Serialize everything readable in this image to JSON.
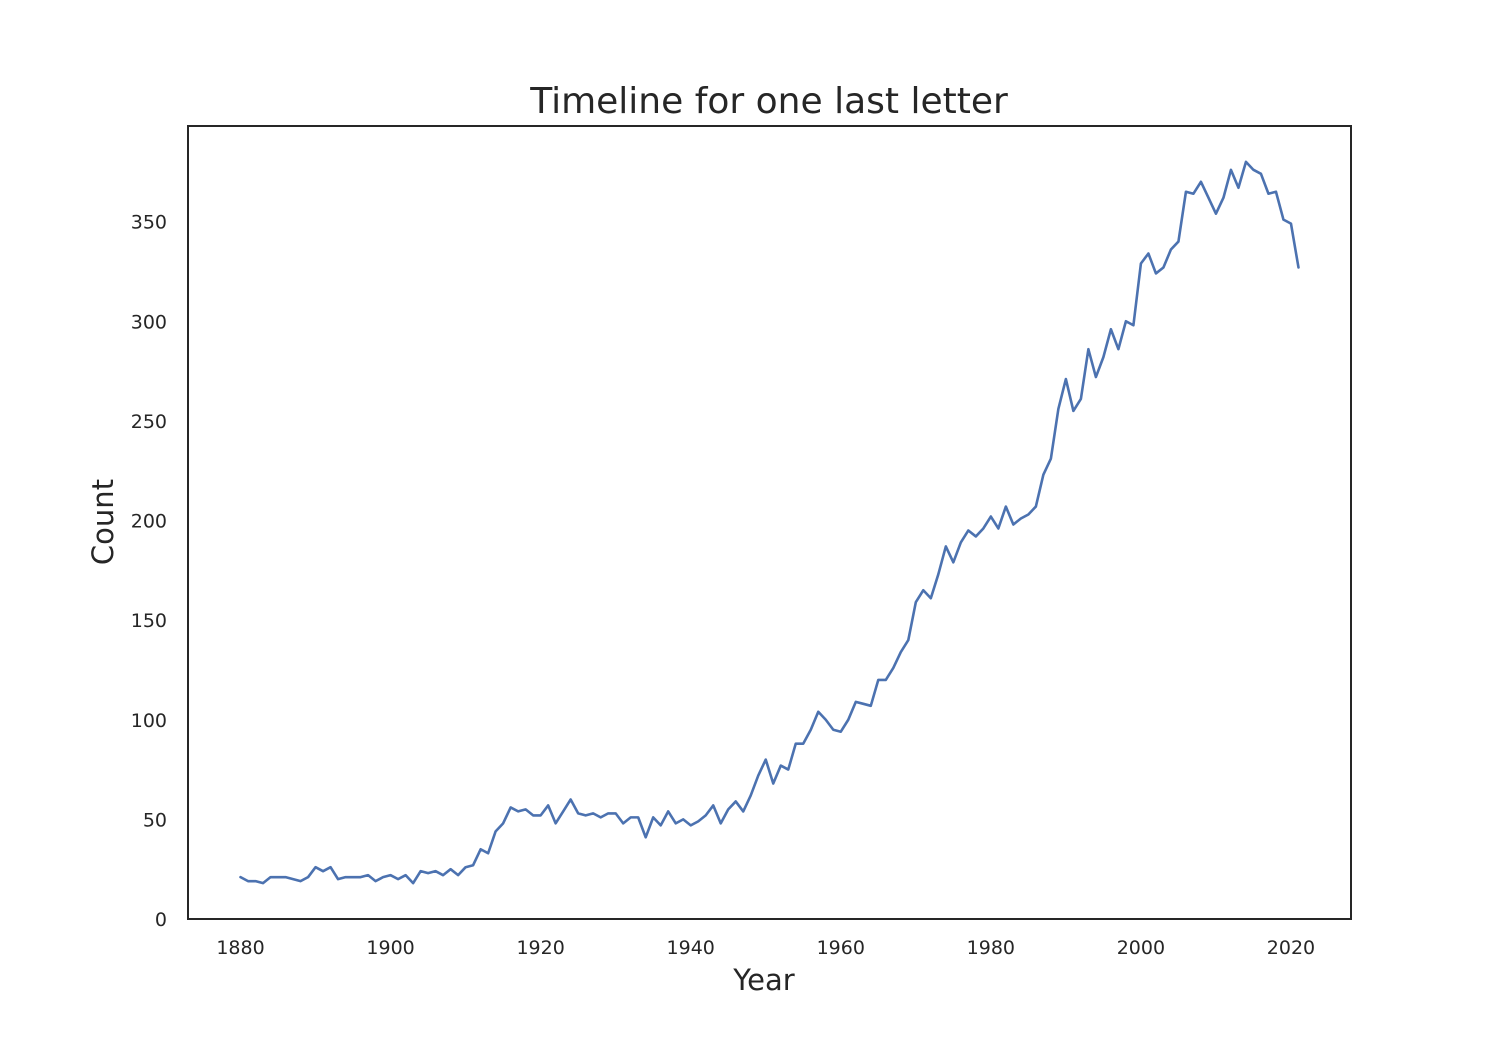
{
  "chart_data": {
    "type": "line",
    "title": "Timeline for one last letter",
    "xlabel": "Year",
    "ylabel": "Count",
    "xlim": [
      1873,
      2028
    ],
    "ylim": [
      0,
      398
    ],
    "xticks": [
      1880,
      1900,
      1920,
      1940,
      1960,
      1980,
      2000,
      2020
    ],
    "yticks": [
      0,
      50,
      100,
      150,
      200,
      250,
      300,
      350
    ],
    "grid": false,
    "legend": "none",
    "series": [
      {
        "color": "#4c72b0",
        "x": [
          1880,
          1881,
          1882,
          1883,
          1884,
          1885,
          1886,
          1887,
          1888,
          1889,
          1890,
          1891,
          1892,
          1893,
          1894,
          1895,
          1896,
          1897,
          1898,
          1899,
          1900,
          1901,
          1902,
          1903,
          1904,
          1905,
          1906,
          1907,
          1908,
          1909,
          1910,
          1911,
          1912,
          1913,
          1914,
          1915,
          1916,
          1917,
          1918,
          1919,
          1920,
          1921,
          1922,
          1923,
          1924,
          1925,
          1926,
          1927,
          1928,
          1929,
          1930,
          1931,
          1932,
          1933,
          1934,
          1935,
          1936,
          1937,
          1938,
          1939,
          1940,
          1941,
          1942,
          1943,
          1944,
          1945,
          1946,
          1947,
          1948,
          1949,
          1950,
          1951,
          1952,
          1953,
          1954,
          1955,
          1956,
          1957,
          1958,
          1959,
          1960,
          1961,
          1962,
          1963,
          1964,
          1965,
          1966,
          1967,
          1968,
          1969,
          1970,
          1971,
          1972,
          1973,
          1974,
          1975,
          1976,
          1977,
          1978,
          1979,
          1980,
          1981,
          1982,
          1983,
          1984,
          1985,
          1986,
          1987,
          1988,
          1989,
          1990,
          1991,
          1992,
          1993,
          1994,
          1995,
          1996,
          1997,
          1998,
          1999,
          2000,
          2001,
          2002,
          2003,
          2004,
          2005,
          2006,
          2007,
          2008,
          2009,
          2010,
          2011,
          2012,
          2013,
          2014,
          2015,
          2016,
          2017,
          2018,
          2019,
          2020,
          2021
        ],
        "values": [
          21,
          19,
          19,
          18,
          21,
          21,
          21,
          20,
          19,
          21,
          26,
          24,
          26,
          20,
          21,
          21,
          21,
          22,
          19,
          21,
          22,
          20,
          22,
          18,
          24,
          23,
          24,
          22,
          25,
          22,
          26,
          27,
          35,
          33,
          44,
          48,
          56,
          54,
          55,
          52,
          52,
          57,
          48,
          54,
          60,
          53,
          52,
          53,
          51,
          53,
          53,
          48,
          51,
          51,
          41,
          51,
          47,
          54,
          48,
          50,
          47,
          49,
          52,
          57,
          48,
          55,
          59,
          54,
          62,
          72,
          80,
          68,
          77,
          75,
          88,
          88,
          95,
          104,
          100,
          95,
          94,
          100,
          109,
          108,
          107,
          120,
          120,
          126,
          134,
          140,
          159,
          165,
          161,
          173,
          187,
          179,
          189,
          195,
          192,
          196,
          202,
          196,
          207,
          198,
          201,
          203,
          207,
          223,
          231,
          256,
          271,
          255,
          261,
          286,
          272,
          282,
          296,
          286,
          300,
          298,
          329,
          334,
          324,
          327,
          336,
          340,
          365,
          364,
          370,
          362,
          354,
          362,
          376,
          367,
          380,
          376,
          374,
          364,
          365,
          351,
          349,
          327
        ]
      }
    ]
  }
}
